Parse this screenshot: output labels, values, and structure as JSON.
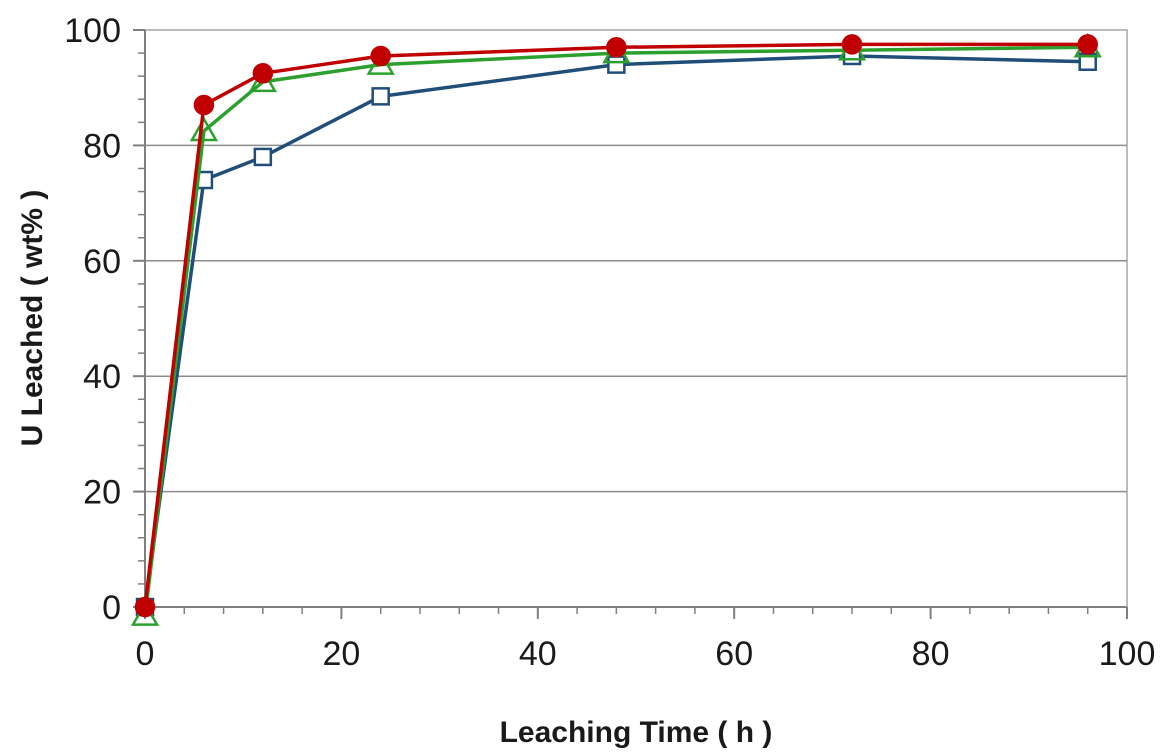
{
  "chart_data": {
    "type": "line",
    "title": "",
    "xlabel": "Leaching Time ( h )",
    "ylabel": "U Leached ( wt% )",
    "xlim": [
      0,
      100
    ],
    "ylim": [
      0,
      100
    ],
    "xticks": [
      0,
      20,
      40,
      60,
      80,
      100
    ],
    "yticks": [
      0,
      20,
      40,
      60,
      80,
      100
    ],
    "xtick_labels": [
      "0",
      "20",
      "40",
      "60",
      "80",
      "100"
    ],
    "ytick_labels": [
      "0",
      "20",
      "40",
      "60",
      "80",
      "100"
    ],
    "x_minor_step": 4,
    "y_minor_step": 4,
    "grid": "horizontal",
    "legend": "none",
    "series": [
      {
        "marker": "square-open",
        "color": "#1f4e79",
        "x": [
          0,
          6,
          12,
          24,
          48,
          72,
          96
        ],
        "y": [
          0,
          74,
          78,
          88.5,
          94,
          95.5,
          94.5
        ]
      },
      {
        "marker": "triangle-open",
        "color": "#2ca02c",
        "x": [
          0,
          6,
          12,
          24,
          48,
          72,
          96
        ],
        "y": [
          -1.5,
          82.5,
          91,
          94,
          96,
          96.5,
          97
        ]
      },
      {
        "marker": "circle-filled",
        "color": "#c00000",
        "x": [
          0,
          6,
          12,
          24,
          48,
          72,
          96
        ],
        "y": [
          0,
          87,
          92.5,
          95.5,
          97,
          97.5,
          97.5
        ]
      }
    ]
  }
}
